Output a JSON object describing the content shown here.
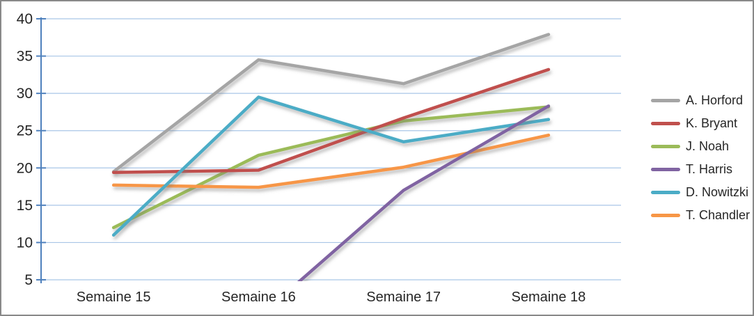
{
  "chart_data": {
    "type": "line",
    "title": "",
    "xlabel": "",
    "ylabel": "",
    "categories": [
      "Semaine 15",
      "Semaine 16",
      "Semaine 17",
      "Semaine 18"
    ],
    "series": [
      {
        "name": "A. Horford",
        "color": "#A5A5A5",
        "values": [
          19.5,
          34.5,
          31.3,
          37.9
        ]
      },
      {
        "name": "K. Bryant",
        "color": "#C0504D",
        "values": [
          19.4,
          19.7,
          26.7,
          33.2
        ]
      },
      {
        "name": "J. Noah",
        "color": "#9BBB59",
        "values": [
          12.0,
          21.7,
          26.3,
          28.2
        ]
      },
      {
        "name": "T. Harris",
        "color": "#8064A2",
        "values": [
          null,
          0.0,
          17.0,
          28.3
        ]
      },
      {
        "name": "D. Nowitzki",
        "color": "#4BACC6",
        "values": [
          11.0,
          29.5,
          23.5,
          26.5
        ]
      },
      {
        "name": "T. Chandler",
        "color": "#F79646",
        "values": [
          17.7,
          17.4,
          20.1,
          24.4
        ]
      }
    ],
    "ylim": [
      5,
      40
    ],
    "y_ticks": [
      40,
      35,
      30,
      25,
      20,
      15,
      10,
      5
    ],
    "grid": true,
    "legend_position": "right"
  },
  "colors": {
    "axis": "#4F81BD",
    "gridline": "#A9C6E7",
    "text": "#262626",
    "frame_border": "#898989",
    "background": "#FFFFFF",
    "shadow": "#7A7A7A"
  }
}
